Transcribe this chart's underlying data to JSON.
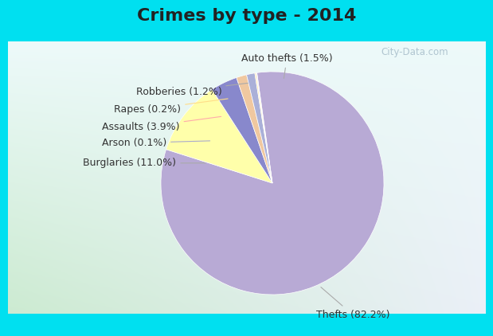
{
  "title": "Crimes by type - 2014",
  "labels": [
    "Thefts",
    "Burglaries",
    "Assaults",
    "Auto thefts",
    "Robberies",
    "Rapes",
    "Arson"
  ],
  "percentages": [
    82.2,
    11.0,
    3.9,
    1.5,
    1.2,
    0.2,
    0.1
  ],
  "colors": [
    "#b8aad5",
    "#ffffaa",
    "#8888cc",
    "#f0c8a0",
    "#aab0d8",
    "#ffe8b0",
    "#ccccee"
  ],
  "title_fontsize": 16,
  "label_fontsize": 9,
  "title_color": "#222222",
  "label_color": "#333333",
  "watermark": "City-Data.com",
  "watermark_color": "#aac0cc",
  "bg_cyan": "#00e0f0",
  "line_colors": [
    "#aaaaaa",
    "#99cc99",
    "#ffaaaa",
    "#ffaa66",
    "#8888cc",
    "#ffdd88",
    "#99ccaa"
  ]
}
